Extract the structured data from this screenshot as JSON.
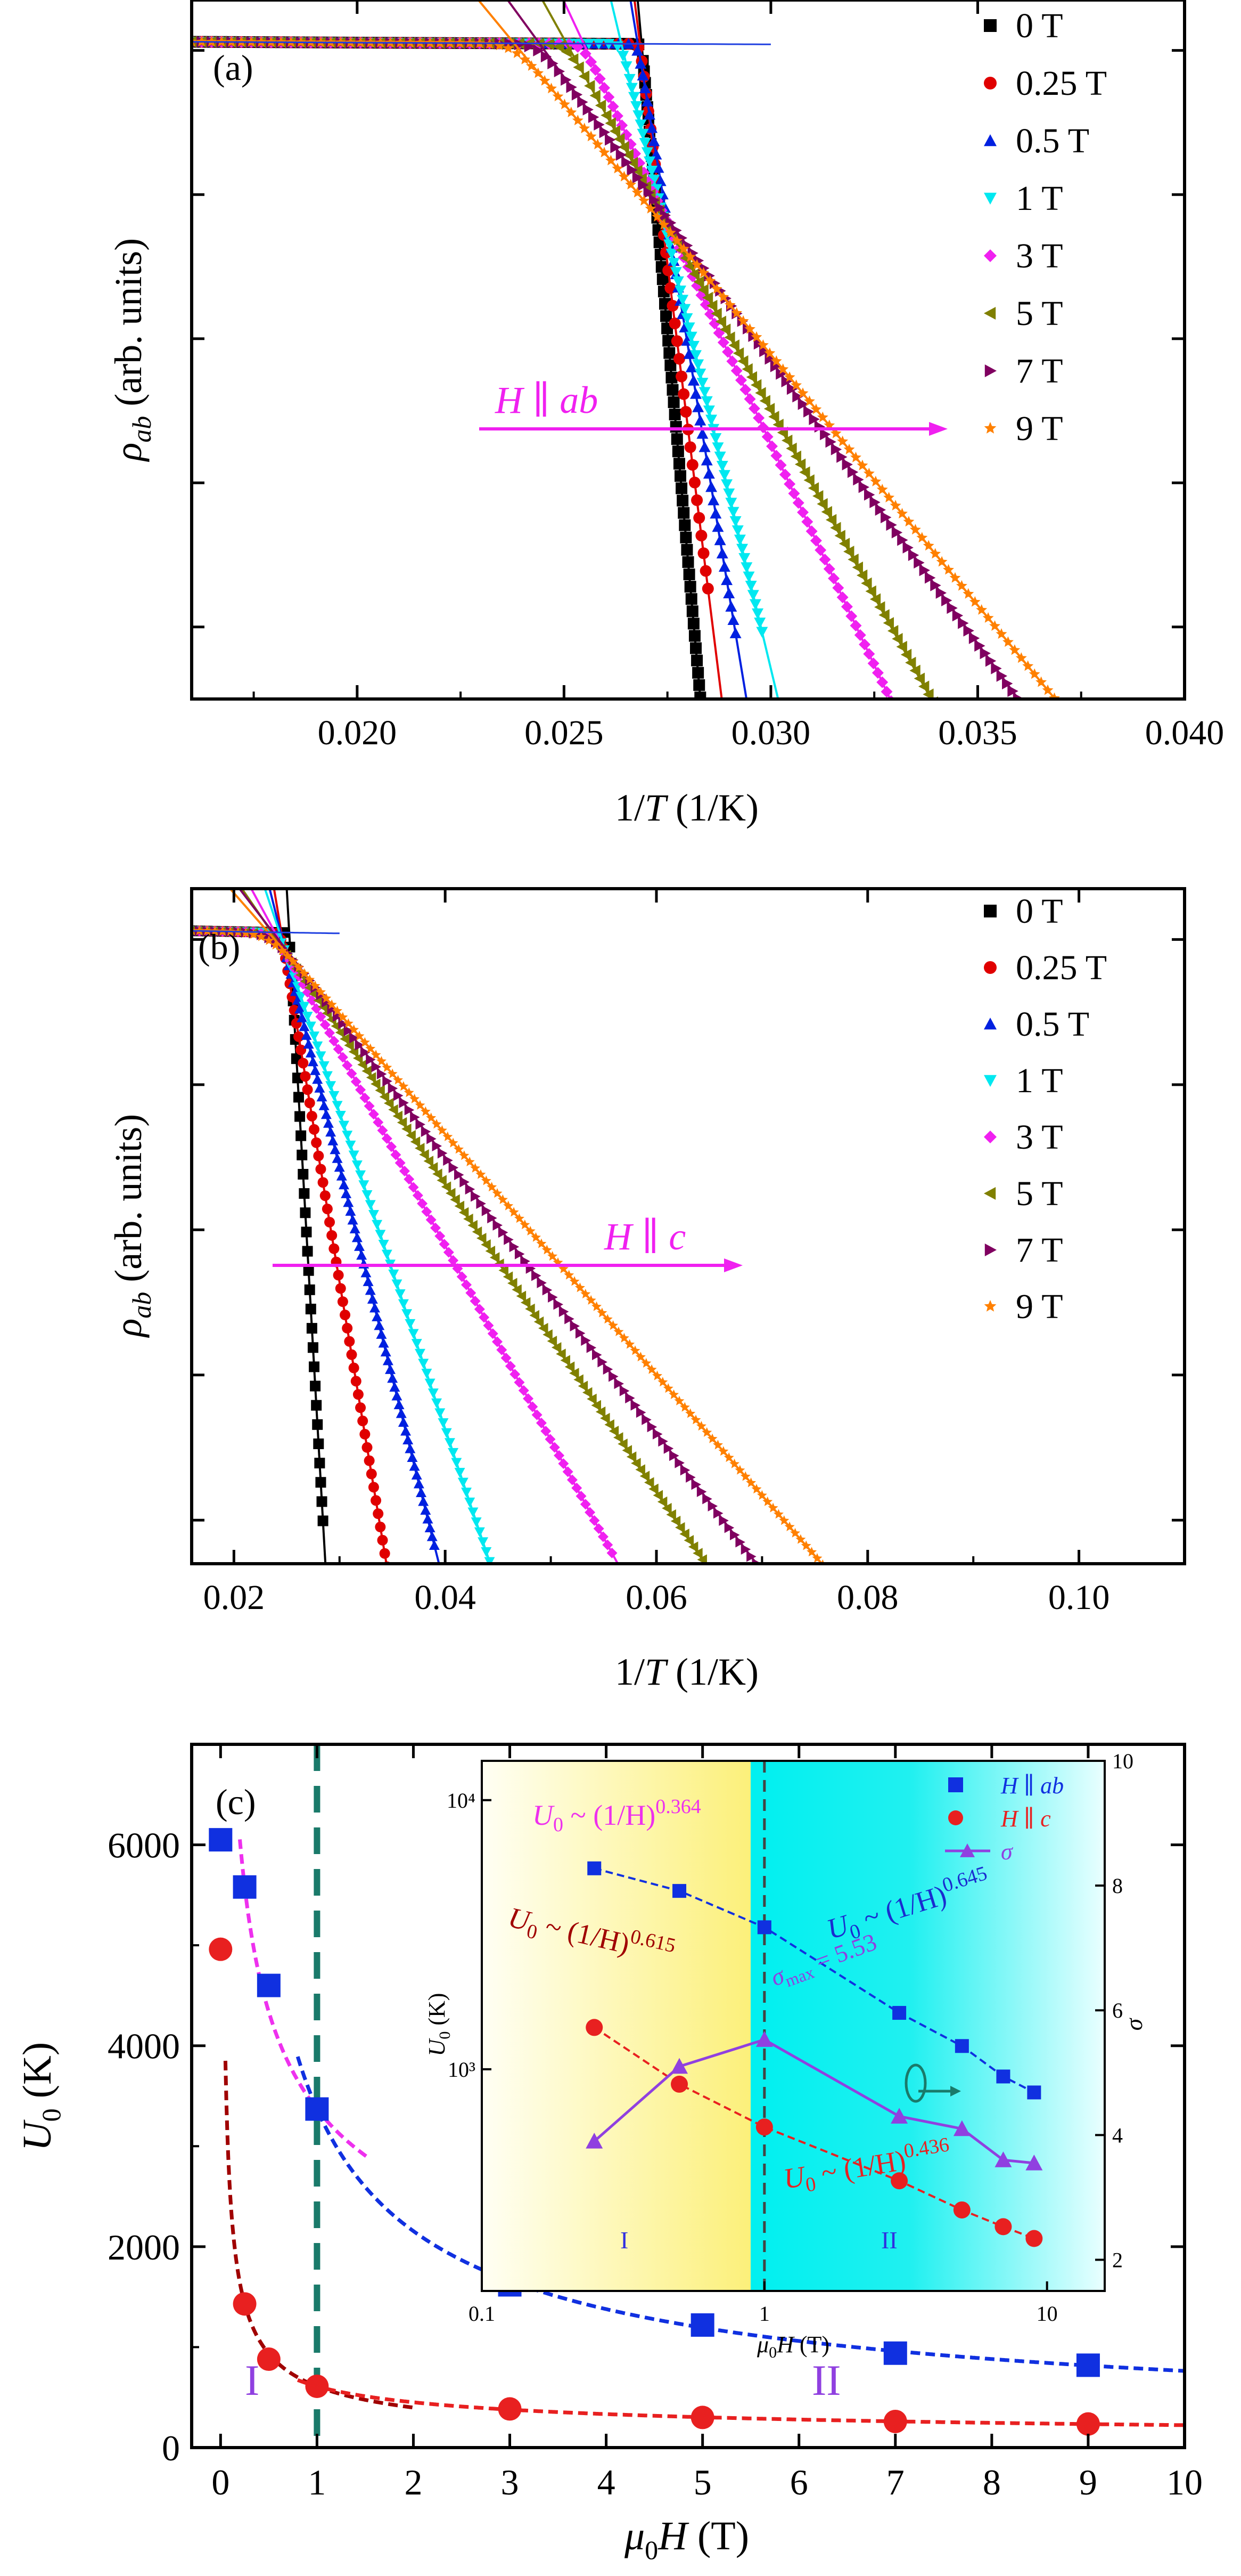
{
  "colors": {
    "f0": "#000000",
    "f025": "#e00000",
    "f05": "#0020e0",
    "f1": "#00e8f0",
    "f3": "#f020f0",
    "f5": "#808000",
    "f7": "#800060",
    "f9": "#ff8000",
    "arrow": "#f020f0",
    "ab": "#1030e0",
    "c": "#e82020",
    "sigma": "#9040e0",
    "fitI": "#ee30ee",
    "fitIc": "#a00000",
    "boundary": "#1a7a6a"
  },
  "chart_data": [
    {
      "panel": "(a)",
      "type": "scatter",
      "title": "",
      "xlabel": "1/T (1/K)",
      "ylabel": "ρab (arb. units)",
      "xlim": [
        0.016,
        0.04
      ],
      "ylim_log_decades": [
        -4.5,
        0.35
      ],
      "xticks": [
        0.02,
        0.025,
        0.03,
        0.035,
        0.04
      ],
      "xtick_labels": [
        "0.020",
        "0.025",
        "0.030",
        "0.035",
        "0.040"
      ],
      "annotation": "H ∥ ab",
      "legend_position": "top-right",
      "series": [
        {
          "name": "0 T",
          "marker": "square",
          "x_knee": 0.0265,
          "x_end": 0.0283,
          "slope": -3200,
          "fit_intercept": 86.05
        },
        {
          "name": "0.25 T",
          "marker": "circle",
          "x_knee": 0.0265,
          "x_end": 0.0285,
          "slope": -2300,
          "fit_intercept": 61.77
        },
        {
          "name": "0.5 T",
          "marker": "triangle",
          "x_knee": 0.0265,
          "x_end": 0.0292,
          "slope": -1730,
          "fit_intercept": 46.38
        },
        {
          "name": "1 T",
          "marker": "tri-down",
          "x_knee": 0.0265,
          "x_end": 0.0298,
          "slope": -1200,
          "fit_intercept": 31.71
        },
        {
          "name": "3 T",
          "marker": "diamond",
          "x_knee": 0.0265,
          "x_end": 0.0332,
          "slope": -614,
          "fit_intercept": 15.69
        },
        {
          "name": "5 T",
          "marker": "tri-left",
          "x_knee": 0.0265,
          "x_end": 0.0345,
          "slope": -516,
          "fit_intercept": 12.98
        },
        {
          "name": "7 T",
          "marker": "tri-right",
          "x_knee": 0.0265,
          "x_end": 0.0368,
          "slope": -393,
          "fit_intercept": 9.64
        },
        {
          "name": "9 T",
          "marker": "star",
          "x_knee": 0.0265,
          "x_end": 0.0382,
          "slope": -348,
          "fit_intercept": 8.33
        }
      ]
    },
    {
      "panel": "(b)",
      "type": "scatter",
      "title": "",
      "xlabel": "1/T (1/K)",
      "ylabel": "ρab (arb. units)",
      "xlim": [
        0.016,
        0.11
      ],
      "ylim_log_decades": [
        -4.3,
        0.35
      ],
      "xticks": [
        0.02,
        0.04,
        0.06,
        0.08,
        0.1
      ],
      "xtick_labels": [
        "0.02",
        "0.04",
        "0.06",
        "0.08",
        "0.10"
      ],
      "annotation": "H ∥ c",
      "legend_position": "top-right",
      "series": [
        {
          "name": "0 T",
          "marker": "square",
          "x_knee": 0.025,
          "x_end": 0.0285,
          "slope": -1270,
          "fit_intercept": 32.1
        },
        {
          "name": "0.25 T",
          "marker": "circle",
          "x_knee": 0.025,
          "x_end": 0.0345,
          "slope": -437,
          "fit_intercept": 10.75
        },
        {
          "name": "0.5 T",
          "marker": "triangle",
          "x_knee": 0.025,
          "x_end": 0.039,
          "slope": -290,
          "fit_intercept": 7.13
        },
        {
          "name": "1 T",
          "marker": "tri-down",
          "x_knee": 0.025,
          "x_end": 0.0442,
          "slope": -218,
          "fit_intercept": 5.35
        },
        {
          "name": "3 T",
          "marker": "diamond",
          "x_knee": 0.025,
          "x_end": 0.056,
          "slope": -134,
          "fit_intercept": 3.25
        },
        {
          "name": "5 T",
          "marker": "tri-left",
          "x_knee": 0.025,
          "x_end": 0.0645,
          "slope": -106,
          "fit_intercept": 2.55
        },
        {
          "name": "7 T",
          "marker": "tri-right",
          "x_knee": 0.025,
          "x_end": 0.07,
          "slope": -95,
          "fit_intercept": 2.3
        },
        {
          "name": "9 T",
          "marker": "star",
          "x_knee": 0.025,
          "x_end": 0.076,
          "slope": -83,
          "fit_intercept": 1.98
        }
      ]
    },
    {
      "panel": "(c)",
      "type": "scatter",
      "title": "",
      "xlabel": "μ0H (T)",
      "ylabel": "U0 (K)",
      "xlim": [
        -0.3,
        10
      ],
      "ylim": [
        0,
        7000
      ],
      "xticks": [
        0,
        1,
        2,
        3,
        4,
        5,
        6,
        7,
        8,
        9,
        10
      ],
      "yticks": [
        0,
        2000,
        4000,
        6000
      ],
      "region_labels": [
        "I",
        "II"
      ],
      "boundary_x": 1,
      "series": [
        {
          "name": "H ∥ ab",
          "marker": "square",
          "x": [
            0,
            0.25,
            0.5,
            1,
            3,
            5,
            7,
            9
          ],
          "y": [
            6050,
            5580,
            4600,
            3370,
            1620,
            1220,
            940,
            820
          ]
        },
        {
          "name": "H ∥ c",
          "marker": "circle",
          "x": [
            0,
            0.25,
            0.5,
            1,
            3,
            5,
            7,
            9
          ],
          "y": [
            4960,
            1430,
            880,
            610,
            385,
            300,
            260,
            235
          ]
        }
      ],
      "fits": [
        {
          "label": "U0 ~ (1/H)^0.364",
          "A": 3370,
          "n": 0.364,
          "x_from": 0.2,
          "x_to": 1.55
        },
        {
          "label": "U0 ~ (1/H)^0.645",
          "A": 3370,
          "n": 0.645,
          "x_from": 0.8,
          "x_to": 10
        },
        {
          "label": "U0 ~ (1/H)^0.615",
          "A": 610,
          "n": 0.615,
          "x_from": 0.05,
          "x_to": 2
        },
        {
          "label": "U0 ~ (1/H)^0.436",
          "A": 610,
          "n": 0.436,
          "x_from": 0.8,
          "x_to": 10
        }
      ],
      "inset": {
        "type": "scatter",
        "xlabel": "μ0H (T)",
        "ylabel": "U0 (K)",
        "ylabel_right": "σ",
        "xscale": "log",
        "yscale": "log",
        "xlim": [
          0.1,
          16
        ],
        "ylim": [
          150,
          14000
        ],
        "y2lim": [
          1.5,
          10
        ],
        "xtick_labels": [
          "0.1",
          "1",
          "10"
        ],
        "ytick_labels": [
          "10³",
          "10⁴"
        ],
        "y2tick_labels": [
          "2",
          "4",
          "6",
          "8",
          "10"
        ],
        "legend": [
          "H ∥ ab",
          "H ∥ c",
          "σ"
        ],
        "fit_labels": {
          "a1": {
            "pre": "U",
            "sub": "0",
            "mid": " ~ (1/H)",
            "exp": "0.364"
          },
          "a2": {
            "pre": "U",
            "sub": "0",
            "mid": " ~ (1/H)",
            "exp": "0.645"
          },
          "c1": {
            "pre": "U",
            "sub": "0",
            "mid": " ~ (1/H)",
            "exp": "0.615"
          },
          "c2": {
            "pre": "U",
            "sub": "0",
            "mid": " ~ (1/H)",
            "exp": "0.436"
          }
        },
        "sigma_max_label": {
          "pre": "σ",
          "sub": "max",
          "post": " = 5.53"
        },
        "sigma": {
          "x": [
            0.25,
            0.5,
            1,
            3,
            5,
            7,
            9
          ],
          "y": [
            3.9,
            5.1,
            5.53,
            4.3,
            4.1,
            3.6,
            3.55
          ]
        },
        "region_labels": [
          "I",
          "II"
        ]
      }
    }
  ]
}
